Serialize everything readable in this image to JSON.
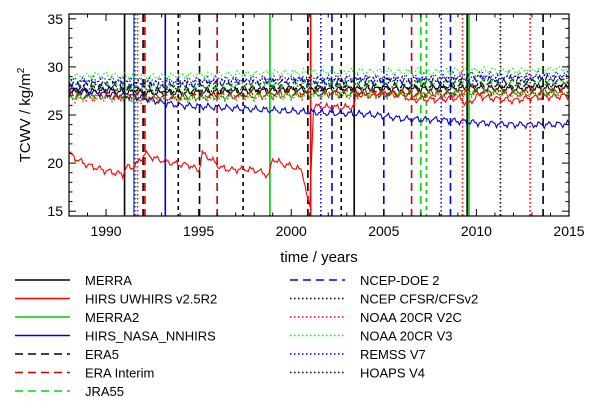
{
  "chart_data": {
    "type": "line",
    "xlabel": "time / years",
    "ylabel_main": "TCWV / kg/m",
    "ylabel_sup": "2",
    "xlim": [
      1988,
      2015
    ],
    "ylim": [
      14.5,
      35.5
    ],
    "xticks": [
      1990,
      1995,
      2000,
      2005,
      2010,
      2015
    ],
    "yticks": [
      15,
      20,
      25,
      30,
      35
    ],
    "grid": false,
    "legend_position": "bottom",
    "series": [
      {
        "name": "MERRA",
        "color": "#000000",
        "dash": "solid",
        "x": [
          1988,
          1990,
          1992,
          1994,
          1996,
          1998,
          2000,
          2002,
          2004,
          2006,
          2008,
          2010,
          2012,
          2015
        ],
        "y": [
          27.4,
          27.5,
          27.3,
          27.3,
          27.4,
          27.5,
          27.6,
          27.6,
          27.7,
          27.7,
          27.7,
          27.8,
          27.7,
          27.8
        ]
      },
      {
        "name": "HIRS UWHIRS v2.5R2",
        "color": "#ff0000",
        "dash": "solid",
        "x": [
          1988,
          1988.5,
          1989,
          1989.5,
          1990,
          1990.5,
          1990.9,
          1991.1,
          1991.4,
          1991.8,
          1992.1,
          1992.6,
          1993.2,
          1993.8,
          1994.5,
          1995.0,
          1995.2,
          1995.6,
          1996.2,
          1996.8,
          1997.5,
          1998.2,
          1998.8,
          1999.0,
          1999.5,
          2000.0,
          2000.6,
          2000.9,
          2001.0,
          2001.2,
          2001.5,
          2002.0,
          2003.0,
          2003.4,
          2003.5,
          2004.0,
          2005.0,
          2006.0,
          2006.5,
          2007.0,
          2007.5,
          2008.0,
          2009.0,
          2009.6,
          2010.0,
          2011.0,
          2012.0,
          2013.0,
          2014.0,
          2015.0
        ],
        "y": [
          21.0,
          20.3,
          19.8,
          19.5,
          19.2,
          19.0,
          18.8,
          19.6,
          19.5,
          20.2,
          21.0,
          20.5,
          20.2,
          19.9,
          19.8,
          19.2,
          21.0,
          20.5,
          19.5,
          19.3,
          19.4,
          19.2,
          18.7,
          20.5,
          19.9,
          19.7,
          19.2,
          16.0,
          15.5,
          25.8,
          25.9,
          25.8,
          25.8,
          25.9,
          27.2,
          27.0,
          27.2,
          27.2,
          26.5,
          26.7,
          26.6,
          26.6,
          26.8,
          26.1,
          27.0,
          26.7,
          26.5,
          26.8,
          26.9,
          27.0
        ]
      },
      {
        "name": "MERRA2",
        "color": "#00cc00",
        "dash": "solid",
        "x": [
          1988,
          1990,
          1992,
          1994,
          1996,
          1998,
          2000,
          2002,
          2004,
          2006,
          2008,
          2010,
          2012,
          2015
        ],
        "y": [
          26.9,
          26.9,
          26.7,
          26.8,
          26.9,
          27.0,
          27.1,
          27.2,
          27.2,
          27.1,
          27.2,
          27.4,
          27.2,
          27.3
        ]
      },
      {
        "name": "HIRS_NASA_NNHIRS",
        "color": "#0000cc",
        "dash": "solid",
        "x": [
          1988,
          1990,
          1992,
          1993,
          1994,
          1996,
          1998,
          2000,
          2002,
          2004,
          2005,
          2006,
          2008,
          2010,
          2012,
          2014,
          2015
        ],
        "y": [
          27.6,
          27.2,
          26.8,
          26.3,
          26.0,
          25.8,
          25.6,
          25.4,
          25.2,
          25.1,
          24.9,
          24.6,
          24.5,
          24.2,
          24.0,
          24.0,
          24.1
        ]
      },
      {
        "name": "ERA5",
        "color": "#000000",
        "dash": "longdash",
        "x": [
          1988,
          1990,
          1992,
          1994,
          1996,
          1998,
          2000,
          2002,
          2004,
          2006,
          2008,
          2010,
          2012,
          2015
        ],
        "y": [
          27.8,
          27.8,
          27.6,
          27.6,
          27.7,
          27.8,
          27.9,
          28.0,
          28.0,
          28.0,
          28.0,
          28.2,
          28.1,
          28.2
        ]
      },
      {
        "name": "ERA Interim",
        "color": "#cc0000",
        "dash": "longdash",
        "x": [
          1988,
          1990,
          1992,
          1994,
          1996,
          1998,
          2000,
          2002,
          2004,
          2006,
          2008,
          2010,
          2012,
          2015
        ],
        "y": [
          27.1,
          27.1,
          26.9,
          26.9,
          27.1,
          27.2,
          27.3,
          27.4,
          27.4,
          27.3,
          27.3,
          27.5,
          27.4,
          27.5
        ]
      },
      {
        "name": "JRA55",
        "color": "#00dd00",
        "dash": "longdash",
        "x": [
          1988,
          1990,
          1992,
          1994,
          1996,
          1998,
          2000,
          2002,
          2004,
          2006,
          2008,
          2010,
          2012,
          2015
        ],
        "y": [
          28.1,
          28.1,
          27.9,
          27.9,
          28.0,
          28.1,
          28.2,
          28.3,
          28.3,
          28.3,
          28.3,
          28.5,
          28.4,
          28.5
        ]
      },
      {
        "name": "NCEP-DOE 2",
        "color": "#0000dd",
        "dash": "longdash",
        "x": [
          1988,
          1990,
          1992,
          1994,
          1996,
          1998,
          2000,
          2002,
          2004,
          2006,
          2008,
          2010,
          2012,
          2015
        ],
        "y": [
          28.3,
          28.2,
          28.0,
          28.1,
          28.3,
          28.4,
          28.5,
          28.5,
          28.6,
          28.6,
          28.6,
          28.8,
          28.7,
          28.9
        ]
      },
      {
        "name": "NCEP CFSR/CFSv2",
        "color": "#000000",
        "dash": "dotted",
        "x": [
          1988,
          1990,
          1992,
          1994,
          1996,
          1998,
          2000,
          2002,
          2004,
          2006,
          2008,
          2010,
          2012,
          2015
        ],
        "y": [
          27.6,
          27.7,
          27.5,
          27.5,
          27.6,
          27.7,
          27.8,
          27.9,
          27.9,
          27.9,
          27.9,
          28.1,
          28.0,
          28.1
        ]
      },
      {
        "name": "NOAA 20CR V2C",
        "color": "#ff0000",
        "dash": "dotted",
        "x": [
          1988,
          1990,
          1992,
          1994,
          1996,
          1998,
          2000,
          2002,
          2004,
          2006,
          2008,
          2010,
          2012,
          2015
        ],
        "y": [
          26.6,
          26.7,
          26.5,
          26.6,
          26.7,
          26.8,
          26.9,
          27.0,
          27.0,
          27.0,
          27.0,
          27.2,
          27.1,
          27.2
        ]
      },
      {
        "name": "NOAA 20CR V3",
        "color": "#00ee00",
        "dash": "dotted",
        "x": [
          1988,
          1990,
          1992,
          1994,
          1996,
          1998,
          2000,
          2002,
          2004,
          2006,
          2008,
          2010,
          2012,
          2015
        ],
        "y": [
          29.0,
          29.2,
          29.0,
          29.1,
          29.2,
          29.3,
          29.4,
          29.5,
          29.5,
          29.5,
          29.5,
          29.7,
          29.6,
          29.8
        ]
      },
      {
        "name": "REMSS V7",
        "color": "#0000ff",
        "dash": "dotted",
        "x": [
          1988,
          1990,
          1992,
          1994,
          1996,
          1998,
          2000,
          2002,
          2004,
          2006,
          2008,
          2010,
          2012,
          2015
        ],
        "y": [
          28.6,
          28.7,
          28.5,
          28.6,
          28.7,
          28.8,
          28.8,
          28.9,
          28.9,
          28.9,
          29.0,
          29.2,
          29.1,
          29.2
        ]
      },
      {
        "name": "HOAPS V4",
        "color": "#000000",
        "dash": "dotted",
        "x": [
          1988,
          1990,
          1992,
          1994,
          1996,
          1998,
          2000,
          2002,
          2004,
          2006,
          2008,
          2010,
          2012,
          2015
        ],
        "y": [
          28.4,
          28.5,
          28.3,
          28.3,
          28.4,
          28.5,
          28.6,
          28.7,
          28.7,
          28.7,
          28.7,
          28.9,
          28.8,
          28.9
        ]
      }
    ],
    "break_lines": [
      {
        "x": 1991.0,
        "color": "#000000",
        "dash": "solid"
      },
      {
        "x": 1991.5,
        "color": "#00cc00",
        "dash": "solid"
      },
      {
        "x": 1991.55,
        "color": "#0000ff",
        "dash": "dotted"
      },
      {
        "x": 1991.7,
        "color": "#ff0000",
        "dash": "dotted"
      },
      {
        "x": 1992.0,
        "color": "#000000",
        "dash": "longdash"
      },
      {
        "x": 1992.1,
        "color": "#cc0000",
        "dash": "longdash"
      },
      {
        "x": 1993.2,
        "color": "#0000cc",
        "dash": "solid"
      },
      {
        "x": 1993.9,
        "color": "#000000",
        "dash": "shortdash"
      },
      {
        "x": 1995.05,
        "color": "#000000",
        "dash": "longdash"
      },
      {
        "x": 1996.0,
        "color": "#cc0000",
        "dash": "longdash"
      },
      {
        "x": 1997.4,
        "color": "#000000",
        "dash": "shortdash"
      },
      {
        "x": 1998.85,
        "color": "#00cc00",
        "dash": "solid"
      },
      {
        "x": 2000.9,
        "color": "#000000",
        "dash": "longdash"
      },
      {
        "x": 2001.05,
        "color": "#ff0000",
        "dash": "solid"
      },
      {
        "x": 2001.6,
        "color": "#0000ff",
        "dash": "dotted"
      },
      {
        "x": 2002.2,
        "color": "#0000cc",
        "dash": "longdash"
      },
      {
        "x": 2002.7,
        "color": "#000000",
        "dash": "shortdash"
      },
      {
        "x": 2003.4,
        "color": "#000000",
        "dash": "solid"
      },
      {
        "x": 2005.0,
        "color": "#0000dd",
        "dash": "longdash"
      },
      {
        "x": 2006.5,
        "color": "#cc0000",
        "dash": "longdash"
      },
      {
        "x": 2007.0,
        "color": "#00dd00",
        "dash": "longdash"
      },
      {
        "x": 2007.3,
        "color": "#00cc00",
        "dash": "shortdash"
      },
      {
        "x": 2008.1,
        "color": "#0000ff",
        "dash": "dotted"
      },
      {
        "x": 2008.6,
        "color": "#0000cc",
        "dash": "longdash"
      },
      {
        "x": 2009.25,
        "color": "#ff0000",
        "dash": "dotted"
      },
      {
        "x": 2009.5,
        "color": "#000000",
        "dash": "solid"
      },
      {
        "x": 2009.6,
        "color": "#00cc00",
        "dash": "solid"
      },
      {
        "x": 2011.3,
        "color": "#000000",
        "dash": "dotted"
      },
      {
        "x": 2012.9,
        "color": "#ff0000",
        "dash": "dotted"
      },
      {
        "x": 2013.6,
        "color": "#000000",
        "dash": "longdash"
      }
    ]
  }
}
